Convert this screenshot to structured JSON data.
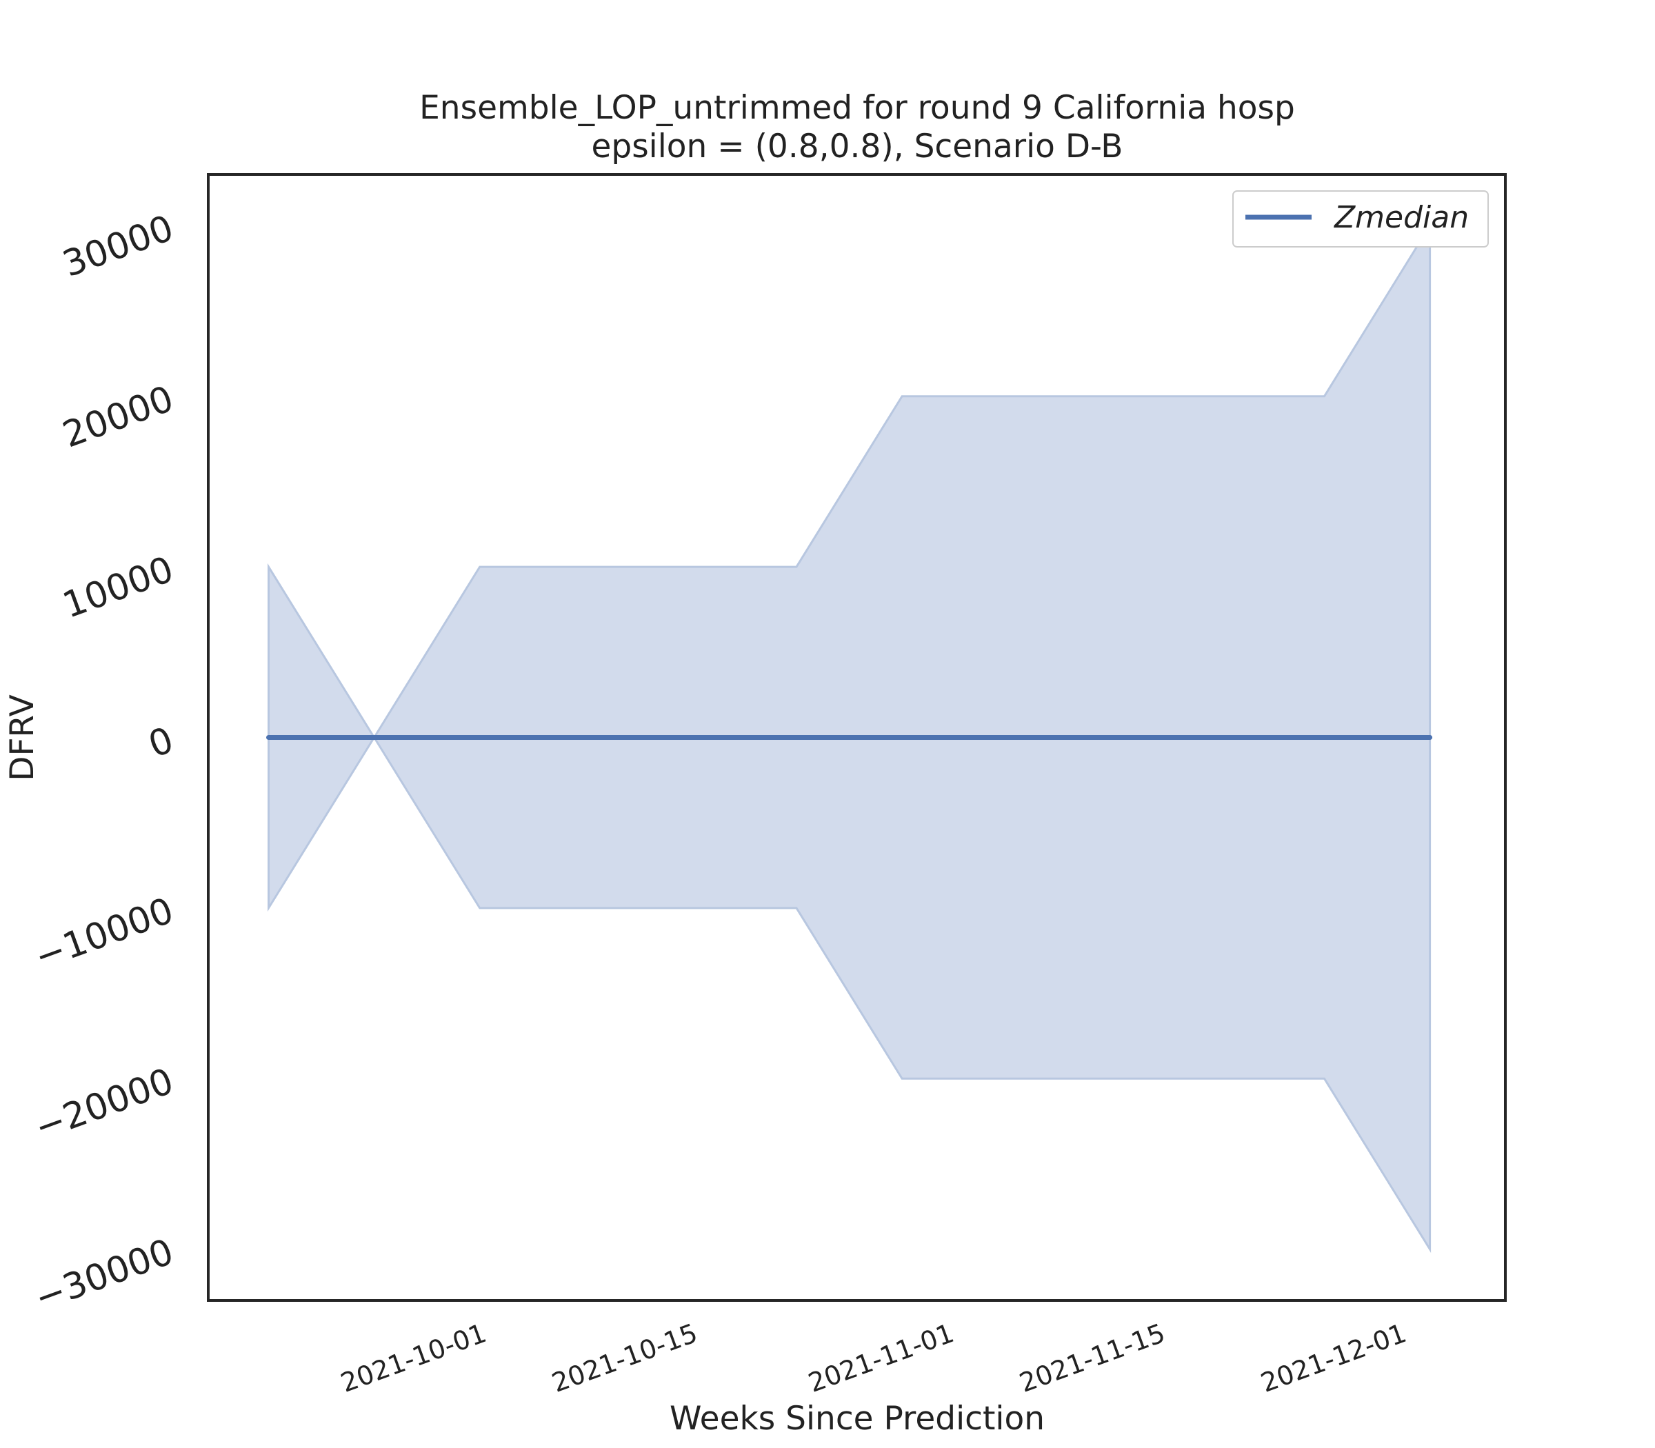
{
  "chart_data": {
    "type": "line",
    "title": "Ensemble_LOP_untrimmed for round 9 California  hosp",
    "subtitle": "epsilon = (0.8,0.8), Scenario D-B",
    "xlabel": "Weeks Since Prediction",
    "ylabel": "DFRV",
    "x": [
      "2021-09-18",
      "2021-09-25",
      "2021-10-02",
      "2021-10-09",
      "2021-10-16",
      "2021-10-23",
      "2021-10-30",
      "2021-11-06",
      "2021-11-13",
      "2021-11-20",
      "2021-11-27",
      "2021-12-04"
    ],
    "series": [
      {
        "name": "Zmedian",
        "values": [
          0,
          0,
          0,
          0,
          0,
          0,
          0,
          0,
          0,
          0,
          0,
          0
        ]
      }
    ],
    "band": {
      "upper": [
        10000,
        0,
        10000,
        10000,
        10000,
        10000,
        20000,
        20000,
        20000,
        20000,
        20000,
        30000
      ],
      "lower": [
        -10000,
        0,
        -10000,
        -10000,
        -10000,
        -10000,
        -20000,
        -20000,
        -20000,
        -20000,
        -20000,
        -30000
      ]
    },
    "xlim": [
      "2021-09-14",
      "2021-12-09"
    ],
    "ylim": [
      -33000,
      33000
    ],
    "yticks": [
      30000,
      20000,
      10000,
      0,
      -10000,
      -20000,
      -30000
    ],
    "ytick_labels": [
      "30000",
      "20000",
      "10000",
      "0",
      "−10000",
      "−20000",
      "−30000"
    ],
    "xticks": [
      "2021-10-01",
      "2021-10-15",
      "2021-11-01",
      "2021-11-15",
      "2021-12-01"
    ],
    "legend": {
      "placement": "upper-right",
      "entries": [
        "Zmedian"
      ]
    },
    "grid": false,
    "colors": {
      "line": "#4c72b0",
      "band": "#d2dbec",
      "band_edge": "#b8c7e0"
    }
  }
}
